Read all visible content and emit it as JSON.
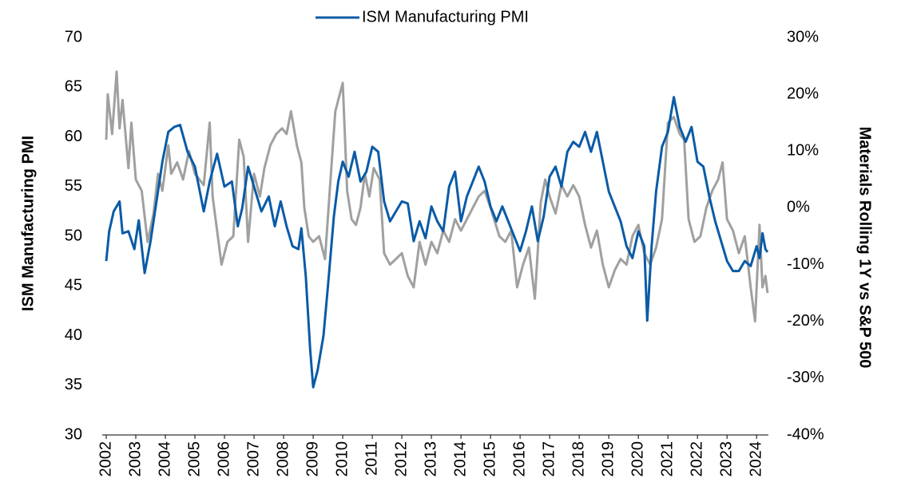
{
  "chart_data": {
    "type": "line",
    "ylabel": "ISM Manufacturing PMI",
    "y2label": "Materials Rolling 1Y vs S&P 500",
    "xlim": [
      2002,
      2024.4
    ],
    "xticks": [
      2002,
      2003,
      2004,
      2005,
      2006,
      2007,
      2008,
      2009,
      2010,
      2011,
      2012,
      2013,
      2014,
      2015,
      2016,
      2017,
      2018,
      2019,
      2020,
      2021,
      2022,
      2023,
      2024
    ],
    "ylim": [
      30,
      70
    ],
    "yticks": [
      30,
      35,
      40,
      45,
      50,
      55,
      60,
      65,
      70
    ],
    "y2lim": [
      -40,
      30
    ],
    "y2ticks": [
      {
        "value": -40,
        "label": "-40%"
      },
      {
        "value": -30,
        "label": "-30%"
      },
      {
        "value": -20,
        "label": "-20%"
      },
      {
        "value": -10,
        "label": "-10%"
      },
      {
        "value": 0,
        "label": "0%"
      },
      {
        "value": 10,
        "label": "10%"
      },
      {
        "value": 20,
        "label": "20%"
      },
      {
        "value": 30,
        "label": "30%"
      }
    ],
    "legend": "top",
    "series": [
      {
        "name": "ISM Manufacturing PMI",
        "color": "#0a5ba6",
        "x": [
          2002.0,
          2002.1,
          2002.25,
          2002.45,
          2002.55,
          2002.75,
          2002.95,
          2003.1,
          2003.3,
          2003.5,
          2003.7,
          2003.9,
          2004.1,
          2004.3,
          2004.5,
          2004.75,
          2005.0,
          2005.3,
          2005.5,
          2005.75,
          2006.0,
          2006.25,
          2006.45,
          2006.6,
          2006.8,
          2007.0,
          2007.25,
          2007.5,
          2007.7,
          2007.9,
          2008.1,
          2008.3,
          2008.5,
          2008.6,
          2008.75,
          2008.9,
          2009.0,
          2009.15,
          2009.35,
          2009.5,
          2009.7,
          2009.85,
          2010.0,
          2010.2,
          2010.4,
          2010.6,
          2010.8,
          2011.0,
          2011.2,
          2011.4,
          2011.6,
          2011.8,
          2012.0,
          2012.2,
          2012.4,
          2012.6,
          2012.8,
          2013.0,
          2013.2,
          2013.4,
          2013.6,
          2013.8,
          2014.0,
          2014.2,
          2014.4,
          2014.6,
          2014.8,
          2015.0,
          2015.2,
          2015.4,
          2015.6,
          2015.8,
          2016.0,
          2016.2,
          2016.4,
          2016.6,
          2016.8,
          2017.0,
          2017.2,
          2017.4,
          2017.6,
          2017.8,
          2018.0,
          2018.2,
          2018.4,
          2018.6,
          2018.8,
          2019.0,
          2019.2,
          2019.4,
          2019.6,
          2019.8,
          2020.0,
          2020.2,
          2020.3,
          2020.45,
          2020.6,
          2020.8,
          2021.0,
          2021.2,
          2021.4,
          2021.6,
          2021.8,
          2022.0,
          2022.2,
          2022.4,
          2022.6,
          2022.8,
          2023.0,
          2023.2,
          2023.4,
          2023.6,
          2023.8,
          2024.0,
          2024.1,
          2024.2,
          2024.3,
          2024.37
        ],
        "values": [
          47.5,
          50.5,
          52.5,
          53.5,
          50.3,
          50.5,
          48.7,
          51.6,
          46.3,
          49.5,
          53.5,
          57.5,
          60.5,
          61,
          61.2,
          58.5,
          57,
          52.5,
          55.5,
          58.3,
          55,
          55.5,
          51,
          52.8,
          57,
          55,
          52.5,
          54,
          51,
          53.5,
          51,
          49,
          48.7,
          50.8,
          46,
          38.5,
          34.8,
          36.5,
          40,
          45,
          52,
          55.5,
          57.5,
          56,
          58.5,
          55.5,
          56.5,
          59,
          58.5,
          53.5,
          51.5,
          52.5,
          53.5,
          53.3,
          49.5,
          51.5,
          49.8,
          53,
          51.5,
          50.5,
          55,
          56.5,
          51.5,
          54,
          55.5,
          57,
          55.5,
          53,
          51.5,
          53,
          51.5,
          50,
          48.5,
          50.5,
          53,
          49.5,
          52,
          56,
          57,
          55,
          58.5,
          59.5,
          59,
          60.5,
          58.5,
          60.5,
          57.5,
          54.5,
          53,
          51.5,
          49,
          47.8,
          50.5,
          49,
          41.5,
          49,
          54.5,
          59,
          60.5,
          64,
          61,
          59.5,
          61,
          57.5,
          57,
          54,
          51.5,
          49.5,
          47.5,
          46.5,
          46.5,
          47.5,
          47,
          49,
          47.8,
          50.3,
          48.7,
          48.4
        ]
      },
      {
        "color": "#a0a0a0",
        "axis": "y2",
        "x": [
          2002.0,
          2002.05,
          2002.2,
          2002.35,
          2002.45,
          2002.55,
          2002.75,
          2002.85,
          2003.0,
          2003.2,
          2003.4,
          2003.6,
          2003.75,
          2003.9,
          2004.1,
          2004.2,
          2004.4,
          2004.6,
          2004.8,
          2005.0,
          2005.3,
          2005.5,
          2005.6,
          2005.75,
          2005.9,
          2006.1,
          2006.3,
          2006.5,
          2006.65,
          2006.8,
          2007.0,
          2007.2,
          2007.35,
          2007.55,
          2007.75,
          2007.95,
          2008.1,
          2008.25,
          2008.45,
          2008.6,
          2008.7,
          2008.85,
          2009.0,
          2009.2,
          2009.4,
          2009.6,
          2009.75,
          2009.85,
          2010.0,
          2010.15,
          2010.3,
          2010.45,
          2010.6,
          2010.75,
          2010.9,
          2011.05,
          2011.25,
          2011.4,
          2011.6,
          2011.8,
          2012.0,
          2012.2,
          2012.4,
          2012.6,
          2012.8,
          2013.0,
          2013.2,
          2013.4,
          2013.6,
          2013.8,
          2014.0,
          2014.2,
          2014.4,
          2014.6,
          2014.8,
          2015.0,
          2015.3,
          2015.5,
          2015.7,
          2015.9,
          2016.1,
          2016.3,
          2016.5,
          2016.7,
          2016.85,
          2017.0,
          2017.2,
          2017.4,
          2017.6,
          2017.8,
          2018.0,
          2018.2,
          2018.4,
          2018.6,
          2018.8,
          2019.0,
          2019.2,
          2019.4,
          2019.6,
          2019.8,
          2020.0,
          2020.2,
          2020.4,
          2020.6,
          2020.8,
          2021.0,
          2021.2,
          2021.4,
          2021.55,
          2021.7,
          2021.9,
          2022.1,
          2022.3,
          2022.5,
          2022.7,
          2022.85,
          2023.0,
          2023.2,
          2023.4,
          2023.6,
          2023.8,
          2023.95,
          2024.1,
          2024.2,
          2024.3,
          2024.37
        ],
        "values": [
          12,
          20,
          13,
          24,
          14,
          19,
          7,
          15,
          5,
          3,
          -6,
          -1,
          6,
          3,
          11,
          6,
          8,
          5,
          10,
          6,
          4,
          15,
          2,
          -4,
          -10,
          -6,
          -5,
          12,
          9,
          -6,
          6,
          2,
          7,
          11,
          13,
          14,
          13,
          17,
          11,
          8,
          0,
          -5,
          -6,
          -5,
          -9,
          6,
          17,
          19,
          22,
          3,
          -2,
          -3,
          0,
          6,
          2,
          7,
          5,
          -8,
          -10,
          -9,
          -8,
          -12,
          -14,
          -6,
          -10,
          -6,
          -8,
          -4,
          -6,
          -2,
          -4,
          -2,
          0,
          2,
          3,
          0,
          -5,
          -6,
          -4,
          -14,
          -10,
          -7,
          -16,
          1,
          5,
          2,
          -1,
          4,
          2,
          4,
          2,
          -3,
          -7,
          -4,
          -10,
          -14,
          -11,
          -9,
          -10,
          -5,
          -3,
          -8,
          -10,
          -7,
          -2,
          15,
          16,
          13,
          12,
          -2,
          -6,
          -5,
          0,
          3,
          5,
          8,
          -2,
          -4,
          -8,
          -5,
          -14,
          -20,
          -3,
          -14,
          -12,
          -15
        ]
      }
    ]
  }
}
